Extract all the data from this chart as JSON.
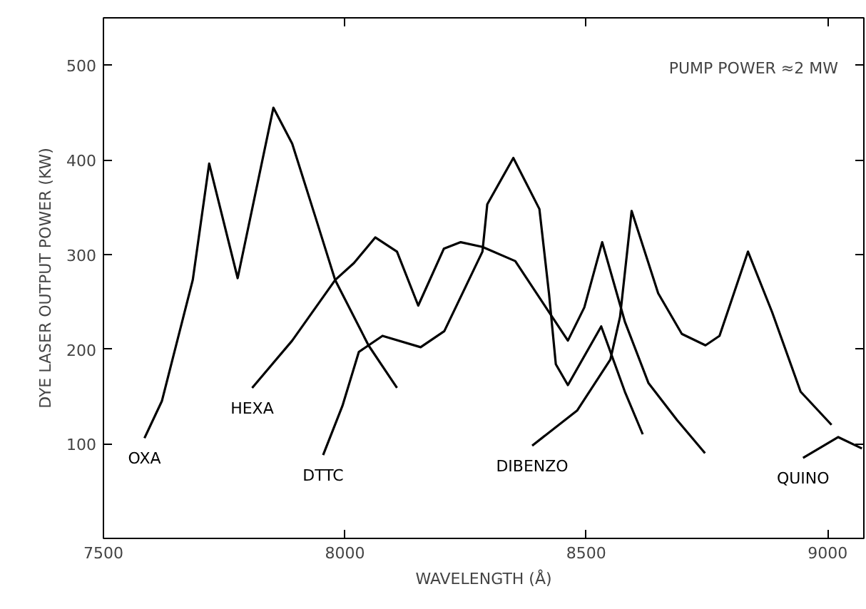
{
  "chart_data": {
    "type": "line",
    "xlabel": "WAVELENGTH (Å)",
    "ylabel": "DYE LASER OUTPUT POWER (KW)",
    "annotations": [
      "PUMP POWER ≈2 MW"
    ],
    "xlim": [
      7500,
      9075
    ],
    "ylim": [
      0,
      550
    ],
    "xticks": [
      7500,
      8000,
      8500,
      9000
    ],
    "yticks": [
      100,
      200,
      300,
      400,
      500
    ],
    "grid": false,
    "marker": "none",
    "line_style": "solid",
    "series": [
      {
        "name": "OXA",
        "color": "#000000",
        "x": [
          7585,
          7621,
          7685,
          7719,
          7778,
          7852,
          7891,
          7940,
          7980,
          8049,
          8108
        ],
        "values": [
          106,
          145,
          273,
          396,
          275,
          455,
          417,
          338,
          273,
          204,
          159
        ]
      },
      {
        "name": "HEXA",
        "color": "#000000",
        "x": [
          7808,
          7891,
          7980,
          8019,
          8063,
          8108,
          8152,
          8205,
          8240,
          8285,
          8353,
          8427,
          8462,
          8496,
          8533,
          8580,
          8629,
          8688,
          8746
        ],
        "values": [
          159,
          209,
          273,
          291,
          318,
          303,
          246,
          306,
          313,
          308,
          293,
          236,
          209,
          244,
          313,
          229,
          164,
          125,
          90
        ]
      },
      {
        "name": "DTTC",
        "color": "#000000",
        "x": [
          7955,
          7995,
          8029,
          8078,
          8157,
          8206,
          8285,
          8295,
          8349,
          8403,
          8423,
          8437,
          8462,
          8531,
          8580,
          8617
        ],
        "values": [
          88,
          140,
          197,
          214,
          202,
          219,
          303,
          353,
          402,
          348,
          258,
          184,
          162,
          224,
          155,
          110
        ]
      },
      {
        "name": "DIBENZO",
        "color": "#000000",
        "x": [
          8388,
          8481,
          8550,
          8570,
          8594,
          8649,
          8698,
          8747,
          8776,
          8835,
          8885,
          8944,
          9008
        ],
        "values": [
          98,
          135,
          189,
          234,
          346,
          259,
          216,
          204,
          214,
          303,
          239,
          155,
          120
        ]
      },
      {
        "name": "QUINO",
        "color": "#000000",
        "x": [
          8949,
          9022,
          9071
        ],
        "values": [
          85,
          107,
          95
        ]
      }
    ]
  }
}
